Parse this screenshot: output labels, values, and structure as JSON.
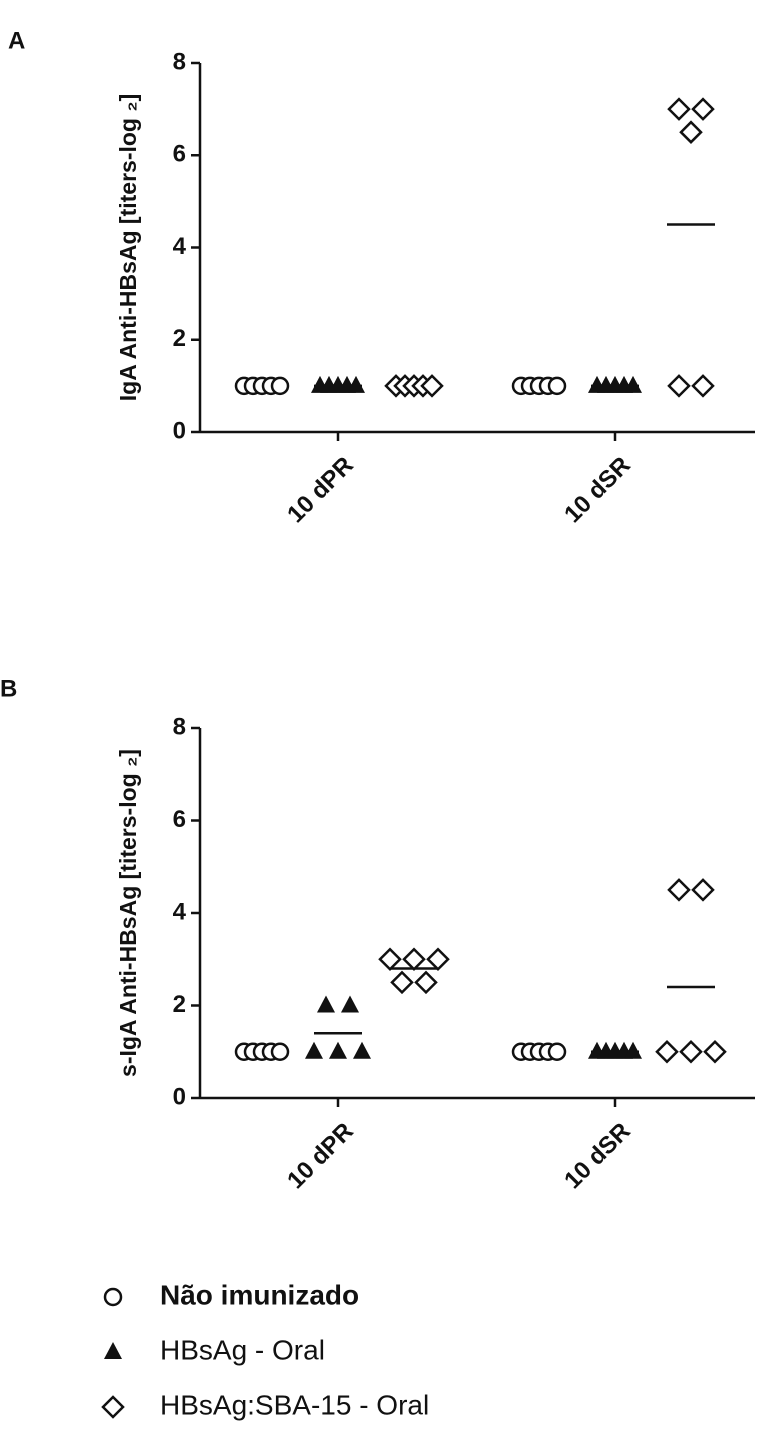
{
  "chart_data": [
    {
      "type": "dot",
      "label": "A",
      "ylabel": "IgA Anti-HBsAg [titers-log ₂]",
      "categories": [
        "10 dPR",
        "10 dSR"
      ],
      "ylim": [
        0,
        8
      ],
      "yticks": [
        0,
        2,
        4,
        6,
        8
      ],
      "series": [
        {
          "marker": "circle",
          "color": "#111111",
          "values": [
            [
              1,
              1,
              1,
              1,
              1
            ],
            [
              1,
              1,
              1,
              1,
              1
            ]
          ],
          "means": [
            1,
            1
          ]
        },
        {
          "marker": "triangle",
          "color": "#111111",
          "values": [
            [
              1,
              1,
              1,
              1,
              1
            ],
            [
              1,
              1,
              1,
              1,
              1
            ]
          ],
          "means": [
            1,
            1
          ]
        },
        {
          "marker": "diamond",
          "color": "#111111",
          "values": [
            [
              1,
              1,
              1,
              1,
              1
            ],
            [
              7,
              7,
              6.5,
              1,
              1
            ]
          ],
          "means": [
            1,
            4.5
          ]
        }
      ]
    },
    {
      "type": "dot",
      "label": "B",
      "ylabel": "s-IgA Anti-HBsAg [titers-log ₂]",
      "categories": [
        "10 dPR",
        "10 dSR"
      ],
      "ylim": [
        0,
        8
      ],
      "yticks": [
        0,
        2,
        4,
        6,
        8
      ],
      "series": [
        {
          "name": "Não imunizado",
          "marker": "circle",
          "color": "#111111",
          "values": [
            [
              1,
              1,
              1,
              1,
              1
            ],
            [
              1,
              1,
              1,
              1,
              1
            ]
          ],
          "means": [
            1,
            1
          ]
        },
        {
          "name": "HBsAg - Oral",
          "marker": "triangle",
          "color": "#111111",
          "values": [
            [
              2,
              2,
              1,
              1,
              1
            ],
            [
              1,
              1,
              1,
              1,
              1
            ]
          ],
          "means": [
            1.4,
            1
          ]
        },
        {
          "name": "HBsAg:SBA-15 - Oral",
          "marker": "diamond",
          "color": "#111111",
          "values": [
            [
              3,
              3,
              3,
              2.5,
              2.5
            ],
            [
              4.5,
              4.5,
              1,
              1,
              1
            ]
          ],
          "means": [
            2.8,
            2.4
          ]
        }
      ]
    }
  ]
}
